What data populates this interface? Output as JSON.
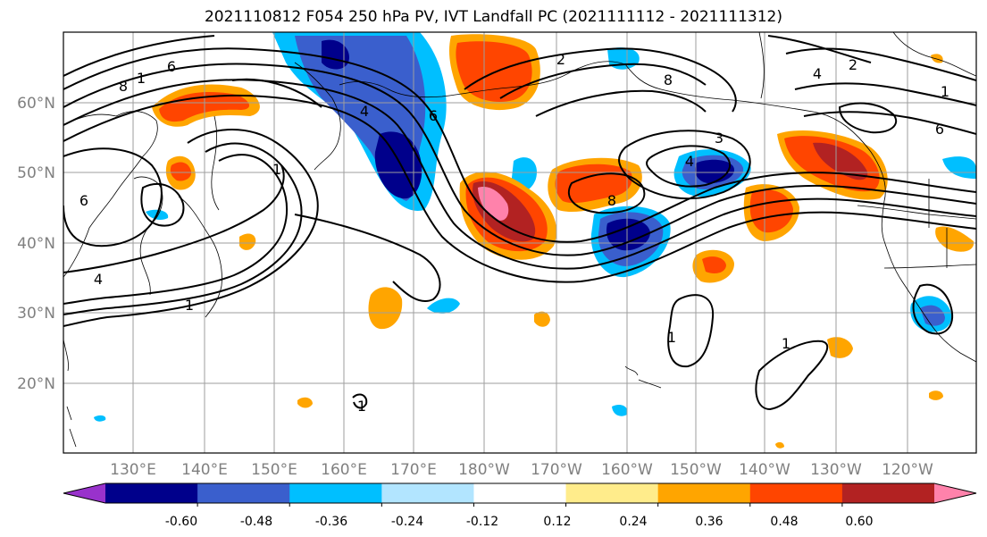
{
  "title": "2021110812 F054 250 hPa PV, IVT Landfall PC (2021111112 - 2021111312)",
  "lat_labels": [
    "60°N",
    "50°N",
    "40°N",
    "30°N",
    "20°N"
  ],
  "lon_labels": [
    "130°E",
    "140°E",
    "150°E",
    "160°E",
    "170°E",
    "180°W",
    "170°W",
    "160°W",
    "150°W",
    "140°W",
    "130°W",
    "120°W"
  ],
  "contour_labels": [
    "6",
    "8",
    "1",
    "4",
    "6",
    "1",
    "1",
    "4",
    "6",
    "8",
    "3",
    "4",
    "1",
    "1",
    "1",
    "2",
    "4",
    "2",
    "8",
    "6",
    "1"
  ],
  "colorbar": {
    "ticks": [
      "-0.60",
      "-0.48",
      "-0.36",
      "-0.24",
      "-0.12",
      "0.12",
      "0.24",
      "0.36",
      "0.48",
      "0.60"
    ],
    "colors": [
      "#9932cc",
      "#00008b",
      "#3a5fcd",
      "#00bfff",
      "#b2e5ff",
      "#ffffff",
      "#ffec8b",
      "#ffa500",
      "#ff4500",
      "#b22222",
      "#ff82ab"
    ]
  },
  "colors": {
    "text_gray": "#808080",
    "positive_strong": "#ff4500",
    "positive_mid": "#ffa500",
    "negative_strong": "#00008b",
    "negative_mid": "#3a5fcd"
  }
}
